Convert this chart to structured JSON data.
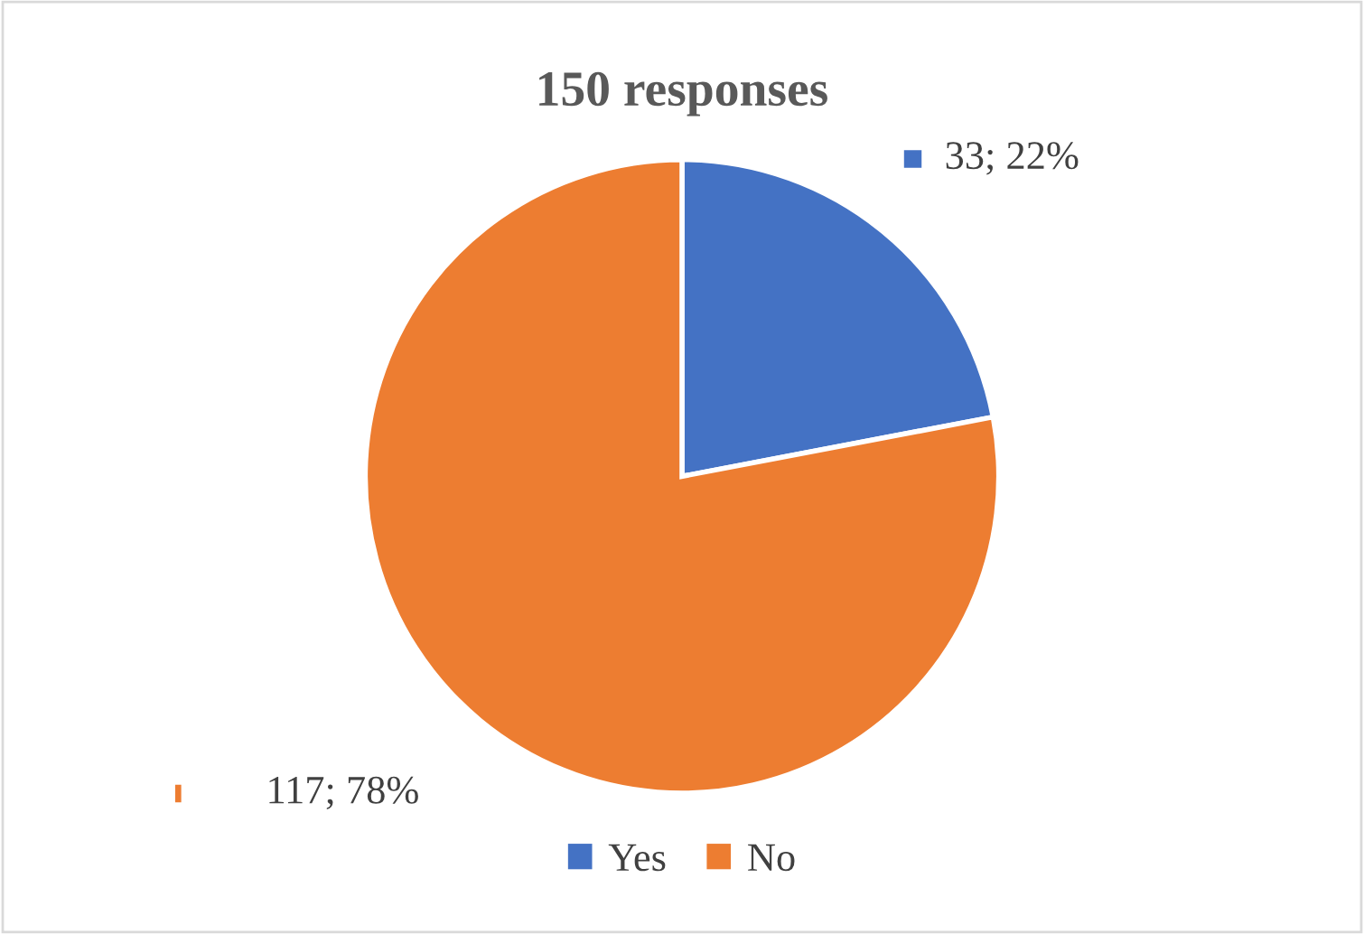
{
  "chart_data": {
    "type": "pie",
    "title": "150 responses",
    "categories": [
      "Yes",
      "No"
    ],
    "values": [
      33,
      117
    ],
    "colors": [
      "#4472c4",
      "#ed7d31"
    ],
    "value_labels": [
      "33; 22%",
      "117; 78%"
    ],
    "legend": "bottom"
  }
}
